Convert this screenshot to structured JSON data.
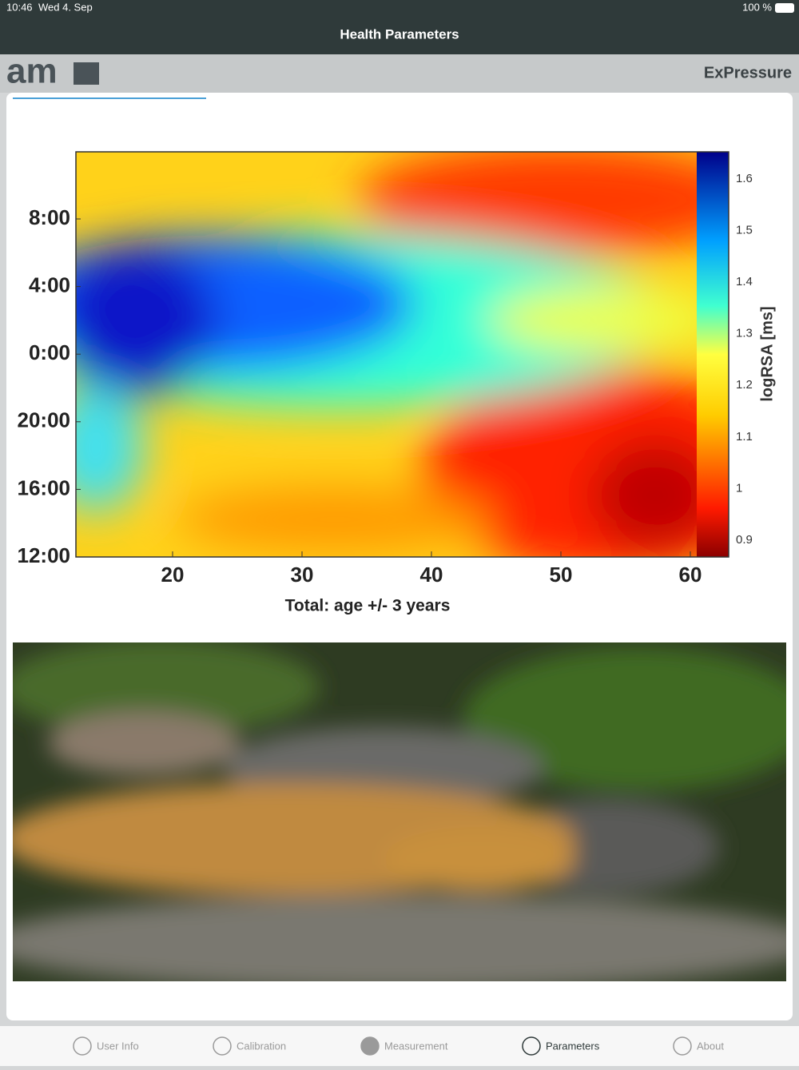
{
  "status_bar": {
    "time": "10:46",
    "date": "Wed 4. Sep",
    "battery": "100 %"
  },
  "header": {
    "title": "Health Parameters"
  },
  "brand": {
    "logo": "am",
    "app": "ExPressure"
  },
  "figure": {
    "y_labels": [
      "12:00",
      "16:00",
      "20:00",
      "0:00",
      "4:00",
      "8:00"
    ],
    "x_labels": [
      "20",
      "30",
      "40",
      "50",
      "60"
    ],
    "x_title": "Total: age +/- 3 years",
    "colorbar_labels": [
      "0.9",
      "1",
      "1.1",
      "1.2",
      "1.3",
      "1.4",
      "1.5",
      "1.6"
    ],
    "colorbar_title": "logRSA [ms]"
  },
  "tabs": [
    "User Info",
    "Calibration",
    "Measurement",
    "Parameters",
    "About"
  ]
}
